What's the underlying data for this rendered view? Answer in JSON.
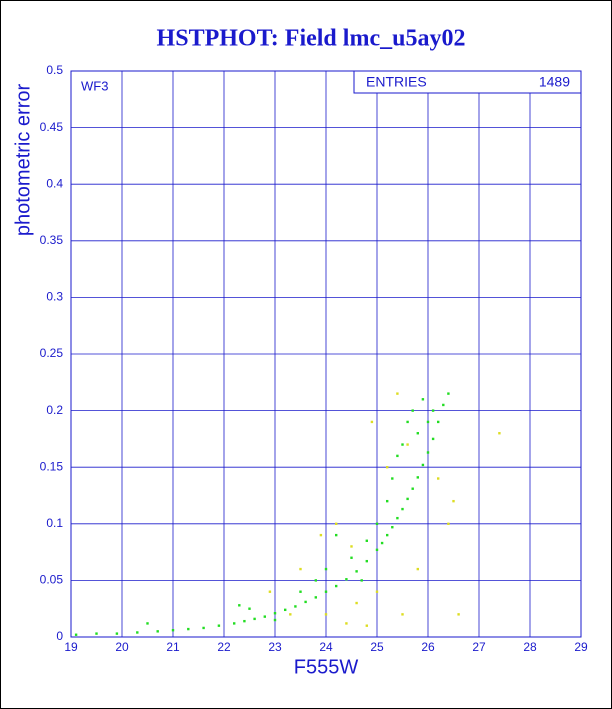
{
  "chart_data": {
    "type": "scatter",
    "title": "HSTPHOT: Field lmc_u5ay02",
    "x_label": "F555W",
    "y_label": "photometric error",
    "annotation": "WF3",
    "stats_label": "ENTRIES",
    "stats_value": "1489",
    "xlim": [
      19,
      29
    ],
    "xticks": [
      19,
      20,
      21,
      22,
      23,
      24,
      25,
      26,
      27,
      28,
      29
    ],
    "ylim": [
      0,
      0.5
    ],
    "yticks": [
      0,
      0.05,
      0.1,
      0.15,
      0.2,
      0.25,
      0.3,
      0.35,
      0.4,
      0.45,
      0.5
    ],
    "grid": true,
    "series": [
      {
        "color": "#22dd22",
        "x": [
          19.1,
          19.5,
          19.9,
          20.3,
          20.7,
          21.0,
          21.3,
          21.6,
          21.9,
          22.2,
          22.4,
          22.6,
          22.8,
          23.0,
          23.2,
          23.4,
          23.6,
          23.8,
          24.0,
          24.2,
          24.4,
          24.6,
          24.8,
          25.0,
          25.1,
          25.2,
          25.3,
          25.4,
          25.5,
          25.6,
          25.7,
          25.8,
          25.9,
          26.0,
          26.1,
          26.2,
          26.3,
          26.4,
          25.3,
          25.5,
          25.7,
          25.9,
          26.0,
          25.6,
          25.2,
          25.0,
          24.8,
          24.5,
          24.0,
          23.8,
          23.5,
          22.5,
          22.3,
          24.2,
          25.4,
          26.1,
          25.8,
          24.7,
          23.0,
          20.5
        ],
        "values": [
          0.002,
          0.003,
          0.003,
          0.004,
          0.005,
          0.006,
          0.007,
          0.008,
          0.01,
          0.012,
          0.014,
          0.016,
          0.018,
          0.021,
          0.024,
          0.027,
          0.031,
          0.035,
          0.04,
          0.045,
          0.051,
          0.058,
          0.067,
          0.077,
          0.083,
          0.09,
          0.097,
          0.105,
          0.113,
          0.122,
          0.131,
          0.141,
          0.152,
          0.163,
          0.175,
          0.19,
          0.205,
          0.215,
          0.14,
          0.17,
          0.2,
          0.21,
          0.19,
          0.19,
          0.12,
          0.1,
          0.085,
          0.07,
          0.06,
          0.05,
          0.04,
          0.025,
          0.028,
          0.09,
          0.16,
          0.2,
          0.18,
          0.05,
          0.015,
          0.012
        ]
      },
      {
        "color": "#dddd22",
        "x": [
          25.4,
          24.9,
          25.6,
          26.2,
          26.5,
          27.4,
          24.5,
          24.2,
          23.9,
          24.0,
          24.6,
          25.0,
          25.5,
          25.8,
          26.4,
          23.5,
          22.9,
          23.3,
          24.8,
          26.6,
          25.2,
          24.4
        ],
        "values": [
          0.215,
          0.19,
          0.17,
          0.14,
          0.12,
          0.18,
          0.08,
          0.1,
          0.09,
          0.02,
          0.03,
          0.04,
          0.02,
          0.06,
          0.1,
          0.06,
          0.04,
          0.02,
          0.01,
          0.02,
          0.15,
          0.012
        ]
      }
    ]
  }
}
